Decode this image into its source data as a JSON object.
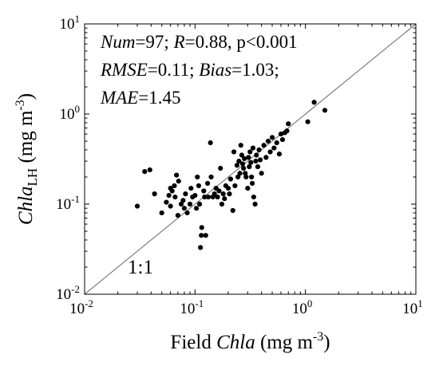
{
  "chart_data": {
    "type": "scatter",
    "x_scale": "log",
    "y_scale": "log",
    "xlim": [
      0.01,
      10
    ],
    "ylim": [
      0.01,
      10
    ],
    "xlabel": {
      "prefix": "Field ",
      "italic": "Chla",
      "unit_prefix": " (mg m",
      "unit_exp": "-3",
      "unit_suffix": ")"
    },
    "ylabel": {
      "italic": "Chla",
      "subscript": "LH",
      "unit_prefix": " (mg m",
      "unit_exp": "-3",
      "unit_suffix": ")"
    },
    "x_ticks": [
      {
        "value": 0.01,
        "base": "10",
        "exp": "-2"
      },
      {
        "value": 0.1,
        "base": "10",
        "exp": "-1"
      },
      {
        "value": 1,
        "base": "10",
        "exp": "0"
      },
      {
        "value": 10,
        "base": "10",
        "exp": "1"
      }
    ],
    "y_ticks": [
      {
        "value": 0.01,
        "base": "10",
        "exp": "-2"
      },
      {
        "value": 0.1,
        "base": "10",
        "exp": "-1"
      },
      {
        "value": 1,
        "base": "10",
        "exp": "0"
      },
      {
        "value": 10,
        "base": "10",
        "exp": "1"
      }
    ],
    "reference_line": {
      "label": "1:1",
      "from": 0.01,
      "to": 10
    },
    "stats_lines": [
      [
        {
          "t": "Num",
          "i": true
        },
        {
          "t": "=97; ",
          "i": false
        },
        {
          "t": "R",
          "i": true
        },
        {
          "t": "=0.88, p<0.001",
          "i": false
        }
      ],
      [
        {
          "t": "RMSE",
          "i": true
        },
        {
          "t": "=0.11; ",
          "i": false
        },
        {
          "t": "Bias",
          "i": true
        },
        {
          "t": "=1.03;",
          "i": false
        }
      ],
      [
        {
          "t": "MAE",
          "i": true
        },
        {
          "t": "=1.45",
          "i": false
        }
      ]
    ],
    "points": [
      [
        0.03,
        0.095
      ],
      [
        0.035,
        0.23
      ],
      [
        0.039,
        0.24
      ],
      [
        0.05,
        0.08
      ],
      [
        0.055,
        0.105
      ],
      [
        0.058,
        0.125
      ],
      [
        0.06,
        0.095
      ],
      [
        0.062,
        0.14
      ],
      [
        0.065,
        0.16
      ],
      [
        0.066,
        0.12
      ],
      [
        0.068,
        0.21
      ],
      [
        0.07,
        0.075
      ],
      [
        0.071,
        0.18
      ],
      [
        0.075,
        0.1
      ],
      [
        0.078,
        0.11
      ],
      [
        0.08,
        0.09
      ],
      [
        0.082,
        0.13
      ],
      [
        0.085,
        0.08
      ],
      [
        0.09,
        0.1
      ],
      [
        0.092,
        0.15
      ],
      [
        0.095,
        0.12
      ],
      [
        0.1,
        0.125
      ],
      [
        0.103,
        0.09
      ],
      [
        0.105,
        0.2
      ],
      [
        0.108,
        0.16
      ],
      [
        0.11,
        0.1
      ],
      [
        0.112,
        0.033
      ],
      [
        0.114,
        0.045
      ],
      [
        0.115,
        0.055
      ],
      [
        0.12,
        0.14
      ],
      [
        0.122,
        0.12
      ],
      [
        0.125,
        0.045
      ],
      [
        0.13,
        0.17
      ],
      [
        0.132,
        0.12
      ],
      [
        0.138,
        0.48
      ],
      [
        0.14,
        0.2
      ],
      [
        0.145,
        0.12
      ],
      [
        0.15,
        0.13
      ],
      [
        0.155,
        0.15
      ],
      [
        0.16,
        0.12
      ],
      [
        0.165,
        0.14
      ],
      [
        0.17,
        0.25
      ],
      [
        0.175,
        0.1
      ],
      [
        0.18,
        0.13
      ],
      [
        0.185,
        0.115
      ],
      [
        0.19,
        0.16
      ],
      [
        0.2,
        0.15
      ],
      [
        0.205,
        0.13
      ],
      [
        0.21,
        0.19
      ],
      [
        0.22,
        0.085
      ],
      [
        0.225,
        0.38
      ],
      [
        0.23,
        0.16
      ],
      [
        0.24,
        0.27
      ],
      [
        0.245,
        0.2
      ],
      [
        0.25,
        0.3
      ],
      [
        0.255,
        0.22
      ],
      [
        0.26,
        0.45
      ],
      [
        0.265,
        0.35
      ],
      [
        0.27,
        0.28
      ],
      [
        0.275,
        0.25
      ],
      [
        0.28,
        0.32
      ],
      [
        0.285,
        0.22
      ],
      [
        0.29,
        0.2
      ],
      [
        0.3,
        0.15
      ],
      [
        0.305,
        0.33
      ],
      [
        0.31,
        0.26
      ],
      [
        0.315,
        0.38
      ],
      [
        0.32,
        0.29
      ],
      [
        0.325,
        0.2
      ],
      [
        0.33,
        0.17
      ],
      [
        0.335,
        0.42
      ],
      [
        0.34,
        0.12
      ],
      [
        0.35,
        0.1
      ],
      [
        0.355,
        0.3
      ],
      [
        0.36,
        0.35
      ],
      [
        0.37,
        0.26
      ],
      [
        0.38,
        0.4
      ],
      [
        0.39,
        0.31
      ],
      [
        0.4,
        0.22
      ],
      [
        0.42,
        0.45
      ],
      [
        0.44,
        0.33
      ],
      [
        0.46,
        0.5
      ],
      [
        0.48,
        0.38
      ],
      [
        0.5,
        0.55
      ],
      [
        0.52,
        0.42
      ],
      [
        0.55,
        0.48
      ],
      [
        0.58,
        0.36
      ],
      [
        0.6,
        0.6
      ],
      [
        0.62,
        0.52
      ],
      [
        0.65,
        0.62
      ],
      [
        0.68,
        0.65
      ],
      [
        0.7,
        0.78
      ],
      [
        1.05,
        0.82
      ],
      [
        1.2,
        1.35
      ],
      [
        1.5,
        1.1
      ],
      [
        0.06,
        0.15
      ],
      [
        0.043,
        0.13
      ]
    ]
  }
}
